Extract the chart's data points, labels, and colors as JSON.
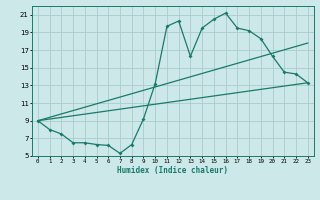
{
  "title": "",
  "xlabel": "Humidex (Indice chaleur)",
  "bg_color": "#cce8e8",
  "grid_color": "#aacccc",
  "line_color": "#1a7a6a",
  "xlim": [
    -0.5,
    23.5
  ],
  "ylim": [
    5,
    22
  ],
  "xticks": [
    0,
    1,
    2,
    3,
    4,
    5,
    6,
    7,
    8,
    9,
    10,
    11,
    12,
    13,
    14,
    15,
    16,
    17,
    18,
    19,
    20,
    21,
    22,
    23
  ],
  "yticks": [
    5,
    7,
    9,
    11,
    13,
    15,
    17,
    19,
    21
  ],
  "line1_x": [
    0,
    1,
    2,
    3,
    4,
    5,
    6,
    7,
    8,
    9,
    10,
    11,
    12,
    13,
    14,
    15,
    16,
    17,
    18,
    19,
    20,
    21,
    22,
    23
  ],
  "line1_y": [
    9,
    8,
    7.5,
    6.5,
    6.5,
    6.3,
    6.2,
    5.3,
    6.3,
    9.2,
    13.2,
    19.7,
    20.3,
    16.3,
    19.5,
    20.5,
    21.2,
    19.5,
    19.2,
    18.3,
    16.3,
    14.5,
    14.3,
    13.3
  ],
  "line2_x": [
    0,
    23
  ],
  "line2_y": [
    9,
    13.3
  ],
  "line3_x": [
    0,
    23
  ],
  "line3_y": [
    9,
    17.8
  ],
  "xlabel_fontsize": 5.5,
  "tick_fontsize_x": 4.2,
  "tick_fontsize_y": 5.0
}
